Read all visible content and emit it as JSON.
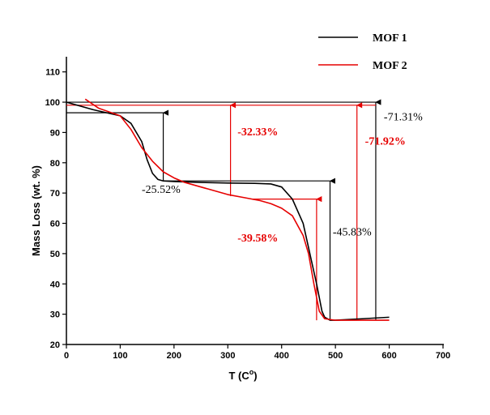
{
  "chart_data": {
    "type": "line",
    "title": "",
    "xlabel": "T (C",
    "xlabel_sup": "o",
    "xlabel_close": ")",
    "ylabel": "Mass Loss (wt. %)",
    "xlim": [
      0,
      700
    ],
    "ylim": [
      20,
      115
    ],
    "xticks": [
      0,
      100,
      200,
      300,
      400,
      500,
      600,
      700
    ],
    "yticks": [
      20,
      30,
      40,
      50,
      60,
      70,
      80,
      90,
      100,
      110
    ],
    "grid": false,
    "legend": "top-right",
    "series": [
      {
        "name": "MOF 1",
        "color": "#000000",
        "x": [
          0,
          50,
          100,
          120,
          140,
          150,
          160,
          170,
          180,
          200,
          250,
          300,
          350,
          380,
          400,
          420,
          440,
          455,
          465,
          475,
          480,
          490,
          500,
          550,
          600
        ],
        "y": [
          100,
          97.5,
          95.5,
          93,
          87,
          81,
          76.5,
          74.5,
          74,
          73.8,
          73.5,
          73.3,
          73.2,
          73,
          72,
          68,
          60,
          48,
          40,
          31,
          29,
          28,
          28,
          28.5,
          29
        ]
      },
      {
        "name": "MOF 2",
        "color": "#e60000",
        "x": [
          35,
          60,
          100,
          120,
          140,
          160,
          180,
          200,
          220,
          250,
          280,
          300,
          330,
          360,
          380,
          400,
          420,
          440,
          450,
          460,
          470,
          480,
          500,
          550,
          600
        ],
        "y": [
          101,
          98,
          95.5,
          91,
          85,
          80.5,
          77,
          75,
          73.5,
          72,
          70.5,
          69.5,
          68.5,
          67.5,
          66.5,
          65,
          62.5,
          56,
          50,
          40,
          31,
          28.5,
          28,
          28,
          28
        ]
      }
    ],
    "annotations": [
      {
        "text": "-25.52%",
        "color": "#000000",
        "x": 140,
        "y": 70
      },
      {
        "text": "-32.33%",
        "color": "#e60000",
        "x": 318,
        "y": 89
      },
      {
        "text": "-39.58%",
        "color": "#e60000",
        "x": 318,
        "y": 54
      },
      {
        "text": "-45.83%",
        "color": "#000000",
        "x": 495,
        "y": 56
      },
      {
        "text": "-71.31%",
        "color": "#000000",
        "x": 590,
        "y": 94
      },
      {
        "text": "-71.92%",
        "color": "#e60000",
        "x": 555,
        "y": 86
      }
    ],
    "guides": [
      {
        "color": "#000000",
        "segments": [
          [
            0,
            96.5,
            180,
            96.5
          ],
          [
            180,
            74,
            180,
            96.5
          ],
          [
            180,
            74,
            490,
            74
          ],
          [
            490,
            28,
            490,
            74
          ],
          [
            0,
            100,
            575,
            100
          ],
          [
            575,
            28,
            575,
            100
          ]
        ]
      },
      {
        "color": "#e60000",
        "segments": [
          [
            0,
            99,
            575,
            99
          ],
          [
            305,
            69,
            305,
            99
          ],
          [
            345,
            68,
            470,
            68
          ],
          [
            465,
            28,
            465,
            68
          ],
          [
            540,
            28,
            540,
            99
          ]
        ]
      }
    ]
  }
}
